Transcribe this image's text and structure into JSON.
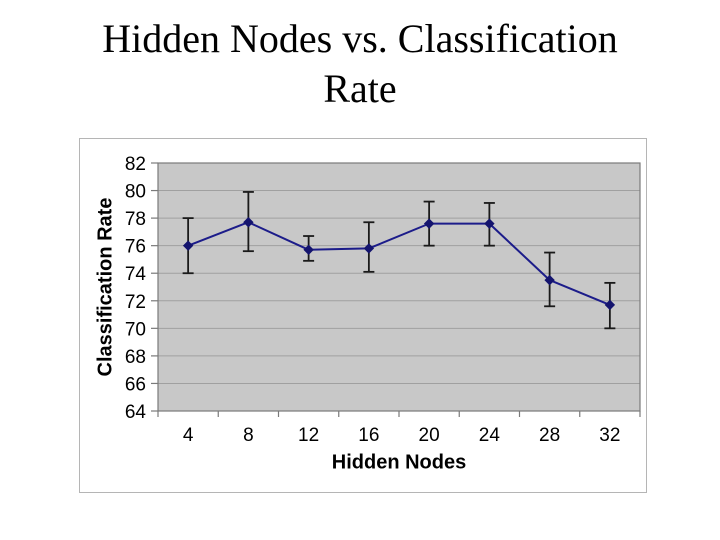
{
  "slide": {
    "title": "Hidden Nodes vs. Classification Rate",
    "title_lines": [
      "Hidden Nodes vs. Classification",
      "Rate"
    ]
  },
  "chart_data": {
    "type": "line",
    "title": "",
    "xlabel": "Hidden Nodes",
    "ylabel": "Classification Rate",
    "categories": [
      "4",
      "8",
      "12",
      "16",
      "20",
      "24",
      "28",
      "32"
    ],
    "series": [
      {
        "name": "Classification Rate",
        "values": [
          76.0,
          77.7,
          75.7,
          75.8,
          77.6,
          77.6,
          73.5,
          71.7
        ],
        "error_low": [
          74.0,
          75.6,
          74.9,
          74.1,
          76.0,
          76.0,
          71.6,
          70.0
        ],
        "error_high": [
          78.0,
          79.9,
          76.7,
          77.7,
          79.2,
          79.1,
          75.5,
          73.3
        ]
      }
    ],
    "ylim": [
      64,
      82
    ],
    "ytick_step": 2,
    "axis_type": "category",
    "grid": "horizontal-major",
    "legend": "none",
    "marker": "diamond",
    "error_bars": true
  },
  "colors": {
    "line": "#1c1c8a",
    "marker": "#14146e",
    "error_bar": "#1a1a1a",
    "plot_bg": "#c8c8c8",
    "gridline": "#a0a0a0",
    "plot_border": "#7a7a7a",
    "chart_border": "#b5b5b5",
    "text": "#000000",
    "slide_bg": "#ffffff"
  }
}
